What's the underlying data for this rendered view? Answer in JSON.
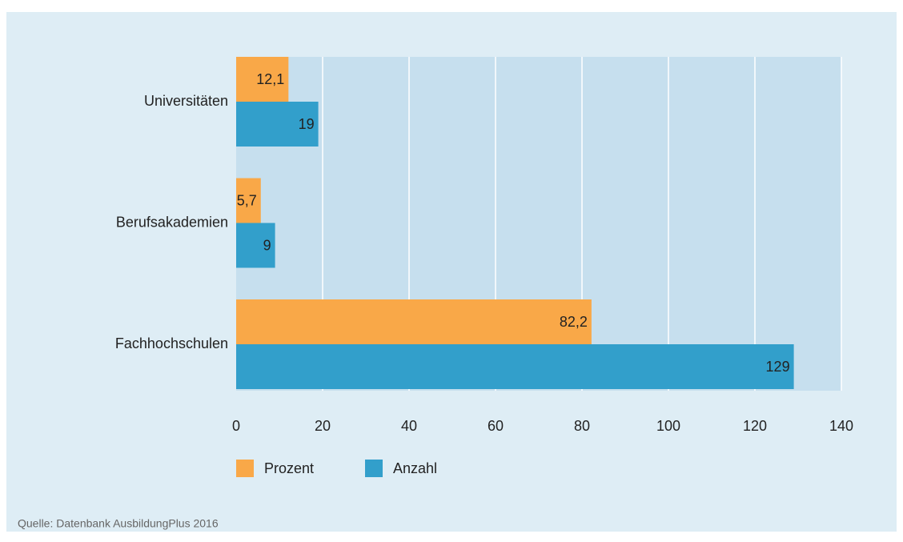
{
  "chart_data": {
    "type": "bar",
    "orientation": "horizontal",
    "categories": [
      "Universitäten",
      "Berufsakademien",
      "Fachhochschulen"
    ],
    "series": [
      {
        "name": "Prozent",
        "color": "#f9a848",
        "values": [
          12.1,
          5.7,
          82.2
        ],
        "value_labels": [
          "12,1",
          "5,7",
          "82,2"
        ]
      },
      {
        "name": "Anzahl",
        "color": "#329fcb",
        "values": [
          19,
          9,
          129
        ]
      }
    ],
    "xlim": [
      0,
      140
    ],
    "xticks": [
      0,
      20,
      40,
      60,
      80,
      100,
      120,
      140
    ],
    "grid": true,
    "source": "Quelle: Datenbank AusbildungPlus 2016"
  }
}
